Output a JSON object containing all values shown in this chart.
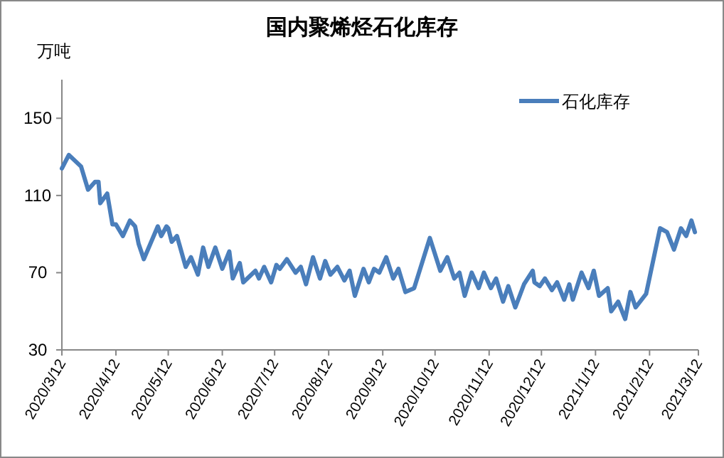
{
  "chart_data": {
    "type": "line",
    "title": "国内聚烯烃石化库存",
    "ylabel": "万吨",
    "x": [
      "2020-03-12",
      "2020-03-16",
      "2020-03-23",
      "2020-03-27",
      "2020-03-31",
      "2020-04-02",
      "2020-04-03",
      "2020-04-07",
      "2020-04-10",
      "2020-04-12",
      "2020-04-16",
      "2020-04-20",
      "2020-04-23",
      "2020-04-25",
      "2020-04-28",
      "2020-05-06",
      "2020-05-08",
      "2020-05-11",
      "2020-05-12",
      "2020-05-14",
      "2020-05-17",
      "2020-05-22",
      "2020-05-25",
      "2020-05-29",
      "2020-06-01",
      "2020-06-04",
      "2020-06-08",
      "2020-06-12",
      "2020-06-16",
      "2020-06-18",
      "2020-06-22",
      "2020-06-24",
      "2020-07-01",
      "2020-07-03",
      "2020-07-06",
      "2020-07-10",
      "2020-07-13",
      "2020-07-15",
      "2020-07-19",
      "2020-07-24",
      "2020-07-27",
      "2020-07-30",
      "2020-08-03",
      "2020-08-07",
      "2020-08-10",
      "2020-08-13",
      "2020-08-17",
      "2020-08-21",
      "2020-08-24",
      "2020-08-27",
      "2020-09-01",
      "2020-09-04",
      "2020-09-07",
      "2020-09-10",
      "2020-09-14",
      "2020-09-18",
      "2020-09-21",
      "2020-09-25",
      "2020-09-30",
      "2020-10-09",
      "2020-10-15",
      "2020-10-19",
      "2020-10-23",
      "2020-10-26",
      "2020-10-29",
      "2020-11-02",
      "2020-11-06",
      "2020-11-09",
      "2020-11-13",
      "2020-11-16",
      "2020-11-20",
      "2020-11-23",
      "2020-11-27",
      "2020-12-02",
      "2020-12-07",
      "2020-12-08",
      "2020-12-11",
      "2020-12-14",
      "2020-12-18",
      "2020-12-21",
      "2020-12-25",
      "2020-12-28",
      "2020-12-30",
      "2021-01-04",
      "2021-01-08",
      "2021-01-11",
      "2021-01-14",
      "2021-01-19",
      "2021-01-21",
      "2021-01-25",
      "2021-01-29",
      "2021-02-01",
      "2021-02-04",
      "2021-02-10",
      "2021-02-18",
      "2021-02-22",
      "2021-02-26",
      "2021-03-02",
      "2021-03-05",
      "2021-03-08",
      "2021-03-10"
    ],
    "series": [
      {
        "name": "石化库存",
        "color": "#4a7ebb",
        "values": [
          124,
          131,
          125,
          113,
          117,
          117,
          106,
          111,
          95,
          95,
          89,
          97,
          94,
          85,
          77,
          94,
          89,
          94,
          93,
          86,
          89,
          73,
          78,
          69,
          83,
          73,
          83,
          72,
          81,
          67,
          75,
          65,
          71,
          67,
          73,
          65,
          74,
          72,
          77,
          70,
          73,
          64,
          78,
          67,
          76,
          69,
          73,
          66,
          71,
          58,
          72,
          65,
          72,
          70,
          78,
          67,
          72,
          60,
          62,
          88,
          71,
          78,
          67,
          70,
          58,
          70,
          62,
          70,
          62,
          67,
          55,
          63,
          52,
          64,
          71,
          65,
          63,
          67,
          61,
          65,
          56,
          64,
          56,
          70,
          62,
          71,
          58,
          62,
          50,
          55,
          46,
          60,
          52,
          59,
          93,
          91,
          82,
          93,
          89,
          97,
          91
        ]
      }
    ],
    "xlim": [
      "2020-03-12",
      "2021-03-12"
    ],
    "xticks": [
      {
        "value": "2020-03-12",
        "label": "2020/3/12"
      },
      {
        "value": "2020-04-12",
        "label": "2020/4/12"
      },
      {
        "value": "2020-05-12",
        "label": "2020/5/12"
      },
      {
        "value": "2020-06-12",
        "label": "2020/6/12"
      },
      {
        "value": "2020-07-12",
        "label": "2020/7/12"
      },
      {
        "value": "2020-08-12",
        "label": "2020/8/12"
      },
      {
        "value": "2020-09-12",
        "label": "2020/9/12"
      },
      {
        "value": "2020-10-12",
        "label": "2020/10/12"
      },
      {
        "value": "2020-11-12",
        "label": "2020/11/12"
      },
      {
        "value": "2020-12-12",
        "label": "2020/12/12"
      },
      {
        "value": "2021-01-12",
        "label": "2021/1/12"
      },
      {
        "value": "2021-02-12",
        "label": "2021/2/12"
      },
      {
        "value": "2021-03-12",
        "label": "2021/3/12"
      }
    ],
    "ylim": [
      30,
      170
    ],
    "yticks": [
      30,
      70,
      110,
      150
    ],
    "legend": "top right",
    "grid": false,
    "marker": "none",
    "line_style": "solid"
  }
}
